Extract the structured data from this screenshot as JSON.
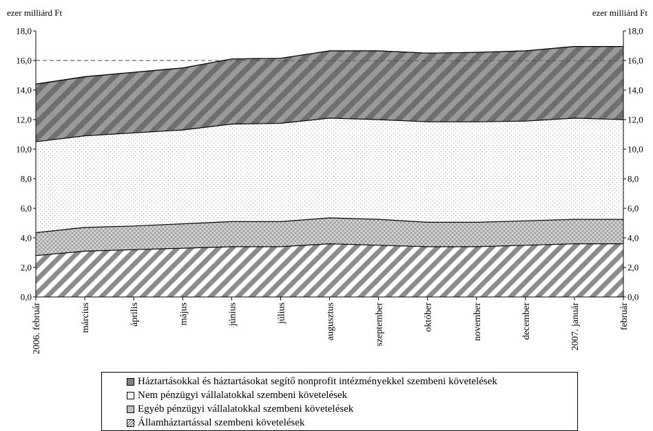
{
  "chart_data": {
    "type": "area",
    "stacked": true,
    "unit_left": "ezer milliárd Ft",
    "unit_right": "ezer milliárd Ft",
    "categories": [
      "2006. február",
      "március",
      "április",
      "május",
      "június",
      "július",
      "augusztus",
      "szeptember",
      "október",
      "november",
      "december",
      "2007. január",
      "február"
    ],
    "ylim": [
      0,
      18
    ],
    "yticks": [
      "0,0",
      "2,0",
      "4,0",
      "6,0",
      "8,0",
      "10,0",
      "12,0",
      "14,0",
      "16,0",
      "18,0"
    ],
    "grid": "dashed line at 16,0",
    "series": [
      {
        "name": "Államháztartással szembeni követelések",
        "values": [
          2.8,
          3.1,
          3.2,
          3.3,
          3.4,
          3.4,
          3.6,
          3.5,
          3.4,
          3.4,
          3.5,
          3.6,
          3.6
        ],
        "pattern": "diagonal",
        "color": "#8c8c8c"
      },
      {
        "name": "Egyéb pénzügyi vállalatokkal szembeni követelések",
        "values": [
          1.55,
          1.6,
          1.6,
          1.65,
          1.7,
          1.7,
          1.75,
          1.75,
          1.65,
          1.65,
          1.65,
          1.65,
          1.65
        ],
        "pattern": "crosshatch",
        "color": "#bfbfbf"
      },
      {
        "name": "Nem pénzügyi vállalatokkal szembeni követelések",
        "values": [
          6.15,
          6.2,
          6.3,
          6.35,
          6.6,
          6.65,
          6.75,
          6.75,
          6.8,
          6.8,
          6.75,
          6.85,
          6.75
        ],
        "pattern": "dots",
        "color": "#d9d9d9"
      },
      {
        "name": "Háztartásokkal és háztartásokat segítő nonprofit intézményekkel szembeni követelések",
        "values": [
          3.9,
          4.0,
          4.1,
          4.2,
          4.4,
          4.4,
          4.55,
          4.65,
          4.65,
          4.7,
          4.75,
          4.85,
          4.95
        ],
        "pattern": "wide-diagonal",
        "color": "#7f7f7f"
      }
    ],
    "legend": {
      "position": "bottom",
      "items": [
        "Háztartásokkal és háztartásokat segítő nonprofit intézményekkel szembeni követelések",
        "Nem pénzügyi vállalatokkal szembeni követelések",
        "Egyéb pénzügyi vállalatokkal szembeni követelések",
        "Államháztartással szembeni követelések"
      ]
    }
  }
}
